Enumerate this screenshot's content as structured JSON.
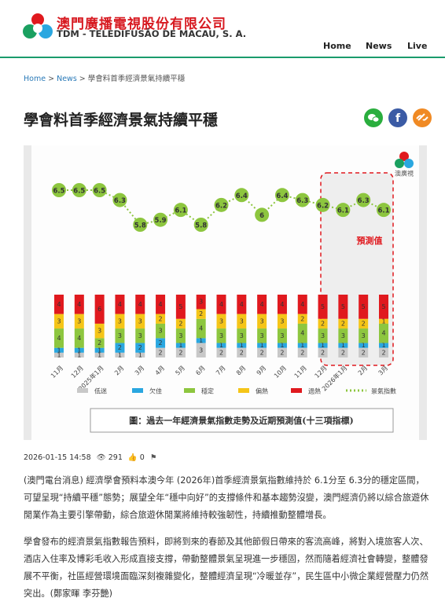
{
  "header": {
    "company_zh": "澳門廣播電視股份有限公司",
    "company_pt": "TDM - TELEDIFUSÃO DE MACAU, S. A."
  },
  "nav": [
    "Home",
    "News",
    "Live"
  ],
  "breadcrumb": {
    "items": [
      "Home",
      "News",
      "學會料首季經濟景氣持續平穩"
    ],
    "separator": ">"
  },
  "article": {
    "title": "學會料首季經濟景氣持續平穩",
    "date": "2026-01-15 14:58",
    "views": 291,
    "likes": 0,
    "paragraphs": [
      "(澳門電台消息) 經濟學會預料本澳今年 (2026年)首季經濟景氣指數維持於 6.1分至 6.3分的穩定區間，可望呈現“持續平穩”態勢；展望全年“穩中向好”的支撐條件和基本趨勢沒變，澳門經濟仍將以綜合旅遊休閒業作為主要引擎帶動，綜合旅遊休閒業將維持較強韌性，持續推動整體增長。",
      "學會發布的經濟景氣指數報告預料，即將到來的春節及其他節假日帶來的客流高峰，將對入境旅客人次、酒店入住率及博彩毛收入形成直接支撐，帶動整體景氣呈現進一步穩固，然而隨着經濟社會轉變，整體發展不平衡，社區經營環境面臨深刻複雜變化，整體經濟呈現“冷暖並存”，民生區中小微企業經營壓力仍然突出。(鄭家暉  李芬艷)"
    ]
  },
  "chart_data": {
    "type": "stacked-bar-line",
    "logo_text": "澳廣視",
    "annotation": "預測值",
    "caption": "圖：過去一年經濟景氣指數走勢及近期預測值(十三項指標)",
    "categories": [
      "11月",
      "12月",
      "2025年1月",
      "2月",
      "3月",
      "4月",
      "5月",
      "6月",
      "7月",
      "8月",
      "9月",
      "10月",
      "11月",
      "12月",
      "2026年1月",
      "2月",
      "3月"
    ],
    "series": [
      {
        "name": "低迷",
        "color": "#c8c8c8",
        "values": [
          1,
          1,
          1,
          1,
          1,
          2,
          2,
          3,
          2,
          2,
          2,
          2,
          2,
          2,
          2,
          2,
          2
        ]
      },
      {
        "name": "欠佳",
        "color": "#2aa7e0",
        "values": [
          1,
          1,
          1,
          2,
          2,
          2,
          1,
          1,
          1,
          1,
          1,
          1,
          1,
          1,
          1,
          1,
          1
        ]
      },
      {
        "name": "穩定",
        "color": "#8dc63f",
        "values": [
          4,
          4,
          2,
          3,
          3,
          3,
          3,
          4,
          3,
          3,
          3,
          3,
          4,
          3,
          3,
          3,
          4
        ]
      },
      {
        "name": "偏熱",
        "color": "#f5c518",
        "values": [
          3,
          3,
          3,
          3,
          3,
          2,
          2,
          2,
          3,
          3,
          3,
          3,
          2,
          2,
          2,
          2,
          1
        ]
      },
      {
        "name": "過熱",
        "color": "#e0191e",
        "values": [
          4,
          4,
          6,
          4,
          4,
          4,
          5,
          3,
          4,
          4,
          4,
          4,
          4,
          5,
          5,
          5,
          5
        ]
      }
    ],
    "index": {
      "name": "景氣指數",
      "color": "#8dc63f",
      "values": [
        6.5,
        6.5,
        6.5,
        6.3,
        5.8,
        5.9,
        6.1,
        5.8,
        6.2,
        6.4,
        6.0,
        6.4,
        6.3,
        6.2,
        6.1,
        6.3,
        6.1
      ]
    },
    "forecast_from": 14
  }
}
